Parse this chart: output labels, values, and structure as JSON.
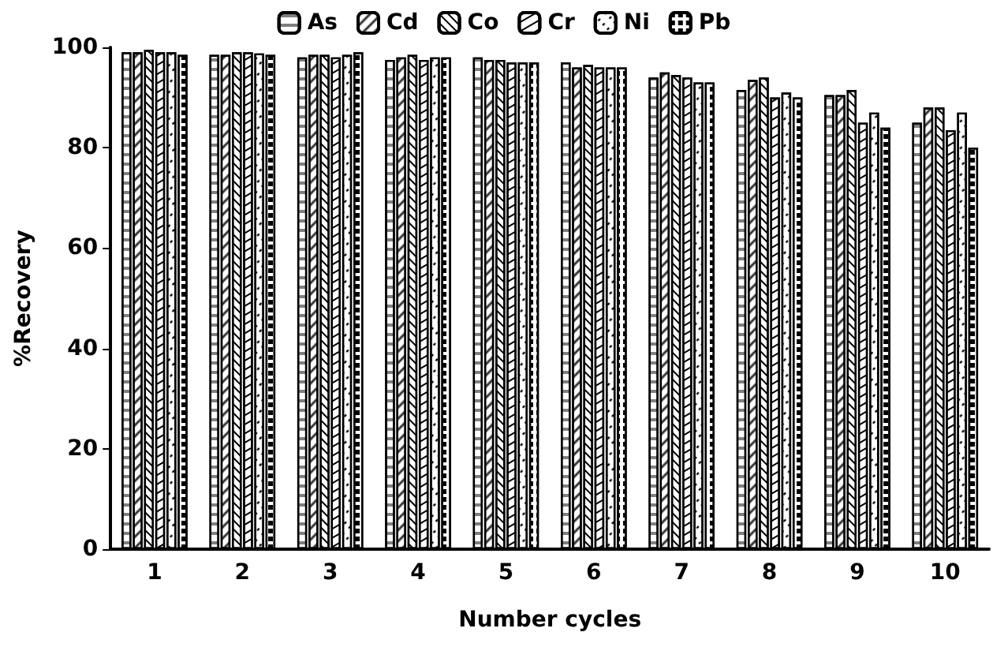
{
  "chart_data": {
    "type": "bar",
    "xlabel": "Number cycles",
    "ylabel": "%Recovery",
    "categories": [
      "1",
      "2",
      "3",
      "4",
      "5",
      "6",
      "7",
      "8",
      "9",
      "10"
    ],
    "series": [
      {
        "name": "As",
        "color": "#000000",
        "values": [
          99,
          98.5,
          98,
          97.5,
          98,
          97,
          94,
          91.5,
          90.5,
          85
        ]
      },
      {
        "name": "Cd",
        "color": "#000000",
        "values": [
          99,
          98.5,
          98.5,
          98,
          97.5,
          96,
          95,
          93.5,
          90.5,
          88
        ]
      },
      {
        "name": "Co",
        "color": "#000000",
        "values": [
          99.5,
          99,
          98.5,
          98.5,
          97.5,
          96.5,
          94.5,
          94,
          91.5,
          88
        ]
      },
      {
        "name": "Cr",
        "color": "#000000",
        "values": [
          99,
          99,
          98,
          97.5,
          97,
          96,
          94,
          90,
          85,
          83.5
        ]
      },
      {
        "name": "Ni",
        "color": "#000000",
        "values": [
          99,
          98.8,
          98.5,
          98,
          97,
          96,
          93,
          91,
          87,
          87
        ]
      },
      {
        "name": "Pb",
        "color": "#000000",
        "values": [
          98.5,
          98.5,
          99,
          98,
          97,
          96,
          93,
          90,
          84,
          80
        ]
      }
    ],
    "ylim": [
      0,
      100
    ],
    "yticks": [
      0,
      20,
      40,
      60,
      80,
      100
    ],
    "grid": false,
    "legend": "top"
  }
}
